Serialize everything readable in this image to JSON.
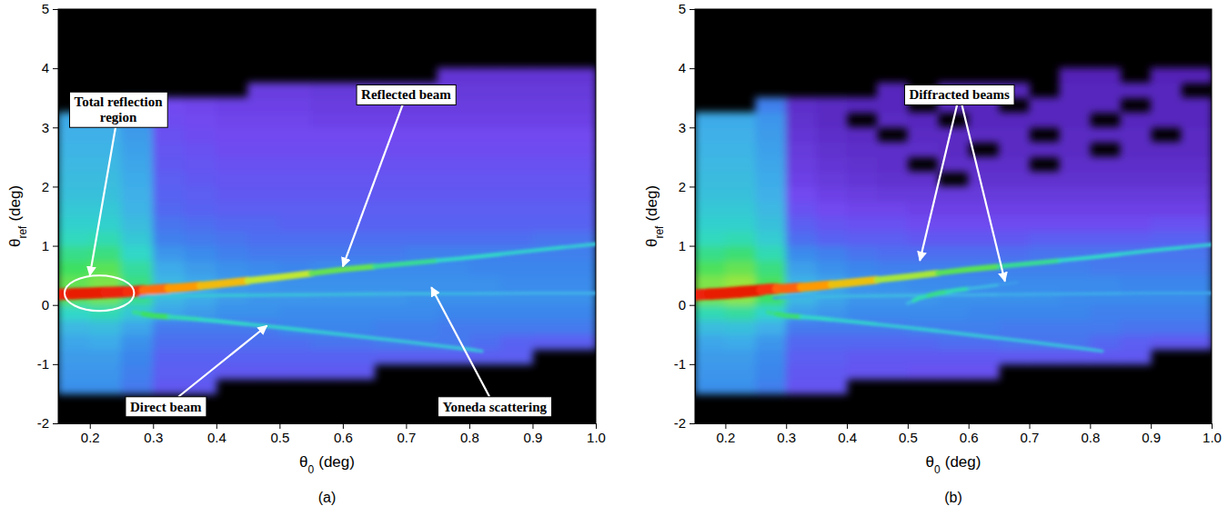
{
  "chart_data": [
    {
      "type": "heatmap",
      "panel": "(a)",
      "xlabel": {
        "symbol": "θ",
        "subscript": "0",
        "unit": "(deg)"
      },
      "ylabel": {
        "symbol": "θ",
        "subscript": "ref",
        "unit": "(deg)"
      },
      "xlim": [
        0.15,
        1.0
      ],
      "ylim": [
        -2,
        5
      ],
      "xticks": [
        0.2,
        0.3,
        0.4,
        0.5,
        0.6,
        0.7,
        0.8,
        0.9,
        {
          "value": 1,
          "label": "1.0"
        }
      ],
      "yticks": [
        -2,
        -1,
        0,
        1,
        2,
        3,
        4,
        5
      ],
      "zlim": [
        0,
        10
      ],
      "x_edges": [
        0.15,
        0.2,
        0.25,
        0.3,
        0.35,
        0.4,
        0.45,
        0.5,
        0.55,
        0.6,
        0.65,
        0.7,
        0.75,
        0.8,
        0.85,
        0.9,
        0.95,
        1.0
      ],
      "y_edges": [
        -1.5,
        -1.25,
        -1,
        -0.75,
        -0.5,
        -0.25,
        0,
        0.25,
        0.5,
        0.75,
        1,
        1.25,
        1.5,
        1.75,
        2,
        2.25,
        2.5,
        2.75,
        3,
        3.25,
        3.5,
        3.75,
        4
      ],
      "cells": [
        [
          3.4,
          3.4,
          3,
          2.4,
          2.4,
          null,
          null,
          null,
          null,
          null,
          null,
          null,
          null,
          null,
          null,
          null,
          null
        ],
        [
          3.5,
          3.5,
          3.1,
          2.5,
          2.5,
          2.4,
          2.4,
          2.4,
          2.4,
          2.4,
          null,
          null,
          null,
          null,
          null,
          null,
          null
        ],
        [
          3.6,
          3.6,
          3.2,
          2.6,
          2.6,
          2.6,
          2.6,
          2.6,
          2.6,
          2.6,
          2.5,
          2.5,
          2.5,
          2.5,
          2.5,
          null,
          null
        ],
        [
          3.8,
          3.9,
          3.4,
          2.8,
          2.8,
          2.8,
          2.8,
          2.8,
          2.9,
          2.9,
          3,
          3,
          3,
          2.8,
          2.6,
          2.5,
          2.5
        ],
        [
          4.2,
          4.3,
          3.8,
          3,
          3,
          3,
          3,
          3.2,
          3.2,
          3.2,
          3.1,
          3.1,
          3,
          3,
          3,
          3,
          3
        ],
        [
          5,
          5.2,
          4.6,
          3.8,
          3.6,
          3.4,
          3.4,
          3.3,
          3.3,
          3.3,
          3.3,
          3.3,
          3.2,
          3.2,
          3.2,
          3.2,
          3.2
        ],
        [
          6.2,
          6.4,
          5.6,
          4.2,
          3.9,
          3.6,
          3.5,
          3.5,
          3.5,
          3.5,
          3.5,
          3.4,
          3.4,
          3.4,
          3.4,
          3.4,
          3.4
        ],
        [
          6.3,
          6.5,
          5.7,
          4.2,
          3.9,
          3.6,
          3.5,
          3.4,
          3.4,
          3.4,
          3.4,
          3.4,
          3.4,
          3.4,
          3.3,
          3.3,
          3.3
        ],
        [
          6,
          6.2,
          5.4,
          3.9,
          3.6,
          3.4,
          3.3,
          3.2,
          3.3,
          3.3,
          3.3,
          3.3,
          3.3,
          3.2,
          3.2,
          3.2,
          3.2
        ],
        [
          5.6,
          5.7,
          5,
          3.5,
          3.3,
          3.1,
          3,
          3,
          3,
          3,
          3,
          3.1,
          3.1,
          3.1,
          3.1,
          3.1,
          3.1
        ],
        [
          5.1,
          5.2,
          4.6,
          3.1,
          3,
          2.9,
          2.8,
          2.8,
          2.8,
          2.8,
          2.8,
          2.8,
          2.8,
          2.8,
          2.8,
          2.9,
          2.9
        ],
        [
          4.8,
          4.8,
          4.3,
          2.9,
          2.8,
          2.7,
          2.7,
          2.6,
          2.6,
          2.6,
          2.6,
          2.6,
          2.6,
          2.6,
          2.6,
          2.6,
          2.6
        ],
        [
          4.6,
          4.6,
          4.1,
          2.7,
          2.6,
          2.5,
          2.5,
          2.5,
          2.5,
          2.5,
          2.5,
          2.5,
          2.5,
          2.5,
          2.5,
          2.5,
          2.5
        ],
        [
          4.4,
          4.4,
          4,
          2.6,
          2.5,
          2.4,
          2.4,
          2.4,
          2.4,
          2.4,
          2.4,
          2.4,
          2.4,
          2.4,
          2.4,
          2.4,
          2.4
        ],
        [
          4.3,
          4.3,
          3.9,
          2.5,
          2.4,
          2.3,
          2.3,
          2.3,
          2.3,
          2.3,
          2.3,
          2.3,
          2.3,
          2.3,
          2.3,
          2.3,
          2.3
        ],
        [
          4.2,
          4.2,
          3.8,
          2.4,
          2.3,
          2.2,
          2.2,
          2.2,
          2.2,
          2.2,
          2.2,
          2.2,
          2.2,
          2.2,
          2.2,
          2.2,
          2.2
        ],
        [
          4.1,
          4.1,
          3.7,
          2.3,
          2.2,
          2.1,
          2.1,
          2.1,
          2.1,
          2.1,
          2.1,
          2.1,
          2.1,
          2.1,
          2.1,
          2.1,
          2.1
        ],
        [
          4,
          4,
          3.6,
          2.2,
          2.1,
          2,
          2,
          2,
          2,
          2,
          2,
          2,
          2,
          2,
          2,
          2,
          2
        ],
        [
          3.9,
          3.9,
          3.4,
          2.1,
          2,
          1.9,
          1.9,
          1.9,
          1.8,
          1.8,
          1.8,
          1.8,
          1.8,
          1.8,
          1.8,
          1.8,
          1.8
        ],
        [
          null,
          null,
          3,
          2,
          1.9,
          1.8,
          1.8,
          1.8,
          1.7,
          1.7,
          1.7,
          1.7,
          1.7,
          1.7,
          1.7,
          1.7,
          1.7
        ],
        [
          null,
          null,
          null,
          null,
          null,
          null,
          1.7,
          1.7,
          1.6,
          1.6,
          1.6,
          1.6,
          1.6,
          1.6,
          1.6,
          1.6,
          1.6
        ],
        [
          null,
          null,
          null,
          null,
          null,
          null,
          null,
          null,
          null,
          null,
          null,
          null,
          1.5,
          1.5,
          1.5,
          1.5,
          1.5
        ]
      ],
      "ridges": [
        {
          "x": [
            0.15,
            0.2,
            0.25,
            0.27,
            0.3,
            0.35,
            0.4,
            0.5,
            0.6,
            0.7,
            0.8,
            0.9,
            1.0
          ],
          "y": [
            0.18,
            0.2,
            0.22,
            0.23,
            0.26,
            0.3,
            0.35,
            0.47,
            0.6,
            0.7,
            0.8,
            0.92,
            1.03
          ],
          "values": [
            9.5,
            9.6,
            9.5,
            9.3,
            8.6,
            8.2,
            7.8,
            7,
            6.3,
            5.5,
            5,
            4.8,
            4.6
          ]
        },
        {
          "x": [
            0.27,
            0.3,
            0.35,
            0.4,
            0.5,
            0.6,
            0.7,
            0.8,
            0.82
          ],
          "y": [
            -0.12,
            -0.18,
            -0.22,
            -0.27,
            -0.38,
            -0.5,
            -0.62,
            -0.75,
            -0.78
          ],
          "values": [
            5.5,
            6,
            5.2,
            5,
            4.8,
            4.6,
            4.5,
            4.5,
            4.3
          ]
        },
        {
          "x": [
            0.28,
            0.3,
            0.4,
            0.5,
            0.6,
            0.7,
            0.8,
            0.9,
            1.0
          ],
          "y": [
            0.14,
            0.15,
            0.16,
            0.17,
            0.18,
            0.19,
            0.19,
            0.2,
            0.2
          ],
          "values": [
            4,
            4.5,
            4.5,
            4.4,
            4.3,
            4.2,
            4.1,
            4,
            4
          ]
        }
      ],
      "annotations": [
        {
          "text": "Total reflection region"
        },
        {
          "text": "Reflected beam"
        },
        {
          "text": "Direct beam"
        },
        {
          "text": "Yoneda scattering"
        }
      ]
    },
    {
      "type": "heatmap",
      "panel": "(b)",
      "xlabel": {
        "symbol": "θ",
        "subscript": "0",
        "unit": "(deg)"
      },
      "ylabel": {
        "symbol": "θ",
        "subscript": "ref",
        "unit": "(deg)"
      },
      "xlim": [
        0.15,
        1.0
      ],
      "ylim": [
        -2,
        5
      ],
      "xticks": [
        0.2,
        0.3,
        0.4,
        0.5,
        0.6,
        0.7,
        0.8,
        0.9,
        {
          "value": 1,
          "label": "1.0"
        }
      ],
      "yticks": [
        -2,
        -1,
        0,
        1,
        2,
        3,
        4,
        5
      ],
      "zlim": [
        0,
        10
      ],
      "x_edges": [
        0.15,
        0.2,
        0.25,
        0.3,
        0.35,
        0.4,
        0.45,
        0.5,
        0.55,
        0.6,
        0.65,
        0.7,
        0.75,
        0.8,
        0.85,
        0.9,
        0.95,
        1.0
      ],
      "y_edges": [
        -1.5,
        -1.25,
        -1,
        -0.75,
        -0.5,
        -0.25,
        0,
        0.25,
        0.5,
        0.75,
        1,
        1.25,
        1.5,
        1.75,
        2,
        2.25,
        2.5,
        2.75,
        3,
        3.25,
        3.5,
        3.75,
        4
      ],
      "cells": [
        [
          3.4,
          3.4,
          3.1,
          2.3,
          2.3,
          null,
          null,
          null,
          null,
          null,
          null,
          null,
          null,
          null,
          null,
          null,
          null
        ],
        [
          3.5,
          3.5,
          3.2,
          2.4,
          2.4,
          2.3,
          2.3,
          2.2,
          2.2,
          2.2,
          null,
          null,
          null,
          null,
          null,
          null,
          null
        ],
        [
          3.6,
          3.6,
          3.3,
          2.5,
          2.5,
          2.4,
          2.4,
          2.4,
          2.4,
          2.4,
          2.4,
          2.4,
          2.4,
          2.4,
          2.4,
          null,
          null
        ],
        [
          3.8,
          3.9,
          3.5,
          2.7,
          2.7,
          2.7,
          2.7,
          2.7,
          2.8,
          2.8,
          2.9,
          2.9,
          2.9,
          2.7,
          2.5,
          2.4,
          2.4
        ],
        [
          4.3,
          4.4,
          4,
          3,
          3,
          3,
          3,
          3.1,
          3.1,
          3.1,
          3,
          3,
          3,
          3,
          2.9,
          2.9,
          2.9
        ],
        [
          5.2,
          5.4,
          4.9,
          3.7,
          3.5,
          3.3,
          3.3,
          3.3,
          3.3,
          3.2,
          3.2,
          3.2,
          3.2,
          3.1,
          3.1,
          3.1,
          3.1
        ],
        [
          6.4,
          6.6,
          6,
          4.2,
          3.8,
          3.5,
          3.5,
          3.5,
          3.4,
          3.4,
          3.4,
          3.4,
          3.3,
          3.3,
          3.3,
          3.3,
          3.3
        ],
        [
          6.5,
          6.7,
          6.1,
          4.1,
          3.8,
          3.5,
          3.4,
          3.3,
          3.3,
          3.3,
          3.3,
          3.3,
          3.3,
          3.3,
          3.2,
          3.2,
          3.2
        ],
        [
          6.1,
          6.3,
          5.7,
          3.7,
          3.4,
          3.2,
          3.1,
          3.1,
          3.1,
          3.1,
          3.1,
          3.1,
          3.1,
          3,
          3,
          3,
          3
        ],
        [
          5.6,
          5.8,
          5.2,
          3.3,
          3.1,
          2.9,
          2.8,
          2.8,
          2.8,
          2.8,
          2.8,
          2.9,
          2.9,
          2.9,
          2.9,
          2.9,
          2.9
        ],
        [
          5.1,
          5.2,
          4.7,
          2.8,
          2.6,
          2.5,
          2.5,
          2.4,
          2.4,
          2.4,
          2.4,
          2.5,
          2.5,
          2.5,
          2.5,
          2.6,
          2.6
        ],
        [
          4.8,
          4.8,
          4.4,
          2.5,
          2.3,
          2.2,
          2.2,
          2.1,
          2.1,
          2.1,
          2.1,
          2.1,
          2.1,
          2.1,
          2.1,
          2.2,
          2.2
        ],
        [
          4.6,
          4.6,
          4.2,
          2.2,
          2,
          1.9,
          1.9,
          1.8,
          1.8,
          1.8,
          1.8,
          1.8,
          1.8,
          1.8,
          1.8,
          1.8,
          1.8
        ],
        [
          4.4,
          4.4,
          4,
          2,
          1.8,
          1.7,
          1.6,
          1.6,
          1.6,
          1.6,
          1.6,
          1.6,
          1.6,
          1.6,
          1.6,
          1.6,
          1.6
        ],
        [
          4.3,
          4.3,
          3.9,
          1.8,
          1.6,
          1.5,
          1.4,
          1.4,
          null,
          1.4,
          1.4,
          1.4,
          1.4,
          1.4,
          1.4,
          1.4,
          1.4
        ],
        [
          4.2,
          4.2,
          3.8,
          1.7,
          1.5,
          1.4,
          1.3,
          null,
          1.3,
          1.3,
          1.3,
          null,
          1.3,
          1.3,
          1.3,
          1.3,
          1.3
        ],
        [
          4.1,
          4.1,
          3.7,
          1.6,
          1.4,
          1.3,
          1.3,
          1.3,
          1.2,
          null,
          1.2,
          1.2,
          1.2,
          null,
          1.2,
          1.2,
          1.2
        ],
        [
          4,
          4,
          3.6,
          1.5,
          1.3,
          1.2,
          null,
          1.2,
          1.2,
          1.2,
          1.2,
          null,
          1.2,
          1.2,
          1.2,
          null,
          1.2
        ],
        [
          3.9,
          3.9,
          3.5,
          1.4,
          1.2,
          null,
          1.2,
          1.1,
          null,
          1.1,
          1.1,
          1.1,
          1.1,
          null,
          1.1,
          1.1,
          1.1
        ],
        [
          null,
          null,
          3.1,
          1.3,
          1.2,
          1.1,
          1.1,
          null,
          1.1,
          1.1,
          null,
          1.1,
          1.1,
          1.1,
          null,
          1.1,
          1.1
        ],
        [
          null,
          null,
          null,
          null,
          null,
          null,
          1.1,
          null,
          1.1,
          1.1,
          1.1,
          null,
          1.1,
          1.1,
          1.1,
          1.1,
          null
        ],
        [
          null,
          null,
          null,
          null,
          null,
          null,
          null,
          null,
          null,
          null,
          null,
          null,
          1,
          1,
          null,
          1,
          1
        ]
      ],
      "ridges": [
        {
          "x": [
            0.15,
            0.2,
            0.25,
            0.27,
            0.3,
            0.35,
            0.4,
            0.5,
            0.6,
            0.7,
            0.8,
            0.9,
            1.0
          ],
          "y": [
            0.17,
            0.2,
            0.24,
            0.27,
            0.28,
            0.32,
            0.37,
            0.48,
            0.6,
            0.7,
            0.8,
            0.92,
            1.02
          ],
          "values": [
            9.5,
            9.6,
            9.6,
            9.2,
            8.7,
            8.2,
            7.7,
            6.8,
            6.2,
            5.5,
            5,
            4.8,
            4.6
          ]
        },
        {
          "x": [
            0.27,
            0.3,
            0.35,
            0.4,
            0.5,
            0.6,
            0.7,
            0.8,
            0.82
          ],
          "y": [
            -0.12,
            -0.18,
            -0.22,
            -0.27,
            -0.38,
            -0.5,
            -0.62,
            -0.75,
            -0.78
          ],
          "values": [
            5.5,
            5.8,
            5,
            4.8,
            4.6,
            4.5,
            4.4,
            4.3,
            4.2
          ]
        },
        {
          "x": [
            0.28,
            0.3,
            0.4,
            0.5,
            0.6,
            0.7,
            0.8,
            0.9,
            1.0
          ],
          "y": [
            0.12,
            0.13,
            0.15,
            0.16,
            0.17,
            0.18,
            0.19,
            0.2,
            0.2
          ],
          "values": [
            3.8,
            4,
            4.2,
            4.2,
            4,
            3.9,
            3.9,
            3.8,
            3.8
          ]
        },
        {
          "x": [
            0.5,
            0.52,
            0.55,
            0.58,
            0.62,
            0.68
          ],
          "y": [
            0.03,
            0.12,
            0.2,
            0.25,
            0.3,
            0.38
          ],
          "values": [
            4.2,
            5.2,
            5.6,
            5.2,
            4.2,
            3.6
          ]
        }
      ],
      "annotations": [
        {
          "text": "Diffracted beams"
        }
      ]
    }
  ]
}
